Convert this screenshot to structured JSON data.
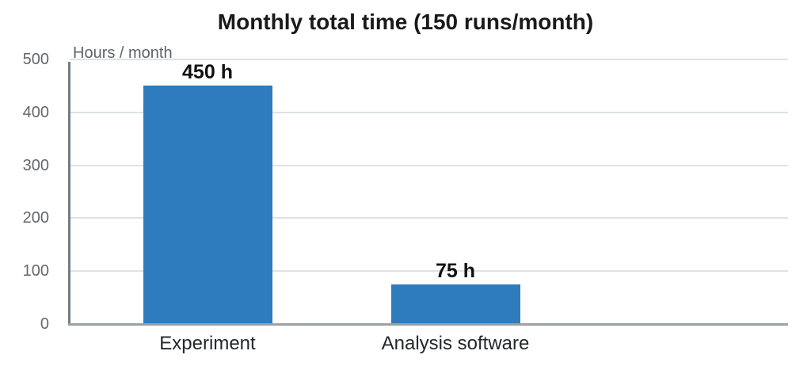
{
  "chart_data": {
    "type": "bar",
    "title": "Monthly total time (150 runs/month)",
    "ylabel": "Hours / month",
    "xlabel": "",
    "categories": [
      "Experiment",
      "Analysis software"
    ],
    "values": [
      450,
      75
    ],
    "value_labels": [
      "450 h",
      "75 h"
    ],
    "yticks": [
      0,
      100,
      200,
      300,
      400,
      500
    ],
    "ylim": [
      0,
      500
    ],
    "grid": true,
    "legend": false,
    "colors": {
      "bar": "#2e7cbd",
      "title_text": "#1a1a1a",
      "axis_title_text": "#5f646a",
      "tick_text": "#63686d",
      "category_text": "#24272b",
      "value_label_text": "#111111",
      "gridline": "#dde2e7",
      "x_axis_line": "#9aa1a8",
      "y_axis_line": "#757b81"
    }
  }
}
